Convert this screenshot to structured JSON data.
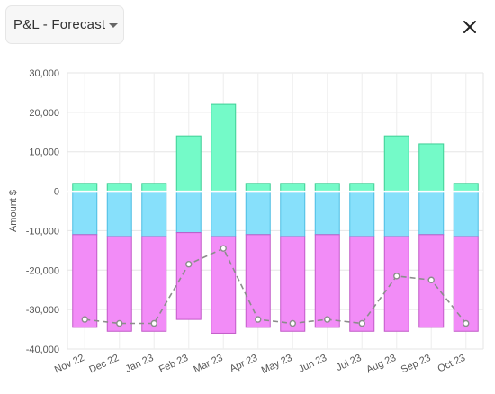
{
  "header": {
    "select_value": "P&L - Forecast",
    "caret_icon": "chevron-down-icon",
    "close_icon": "close-icon"
  },
  "chart_data": {
    "type": "bar",
    "stacked": true,
    "categories": [
      "Nov 22",
      "Dec 22",
      "Jan 23",
      "Feb 23",
      "Mar 23",
      "Apr 23",
      "May 23",
      "Jun 23",
      "Jul 23",
      "Aug 23",
      "Sep 23",
      "Oct 23"
    ],
    "series": [
      {
        "kind": "bar",
        "color": "#74fac8",
        "stroke": "#3fcf96",
        "values": [
          2000,
          2000,
          2000,
          14000,
          22000,
          2000,
          2000,
          2000,
          2000,
          14000,
          12000,
          2000
        ]
      },
      {
        "kind": "bar",
        "color": "#87e0fb",
        "stroke": "#4dbde3",
        "values": [
          -11000,
          -11500,
          -11500,
          -10500,
          -11500,
          -11000,
          -11500,
          -11000,
          -11500,
          -11500,
          -11000,
          -11500
        ]
      },
      {
        "kind": "bar",
        "color": "#f28cf7",
        "stroke": "#c25ac8",
        "values": [
          -23500,
          -24000,
          -24000,
          -22000,
          -24500,
          -23500,
          -24000,
          -23500,
          -24000,
          -24000,
          -23500,
          -24000
        ]
      },
      {
        "kind": "line",
        "color": "#8c8c8c",
        "values": [
          -32500,
          -33500,
          -33500,
          -18500,
          -14500,
          -32500,
          -33500,
          -32500,
          -33500,
          -21500,
          -22500,
          -33500
        ]
      }
    ],
    "ylabel": "Amount $",
    "ylim": [
      -40000,
      30000
    ],
    "yticks": [
      30000,
      20000,
      10000,
      0,
      -10000,
      -20000,
      -30000,
      -40000
    ],
    "ytick_labels": [
      "30,000",
      "20,000",
      "10,000",
      "0",
      "-10,000",
      "-20,000",
      "-30,000",
      "-40,000"
    ],
    "grid": true
  }
}
